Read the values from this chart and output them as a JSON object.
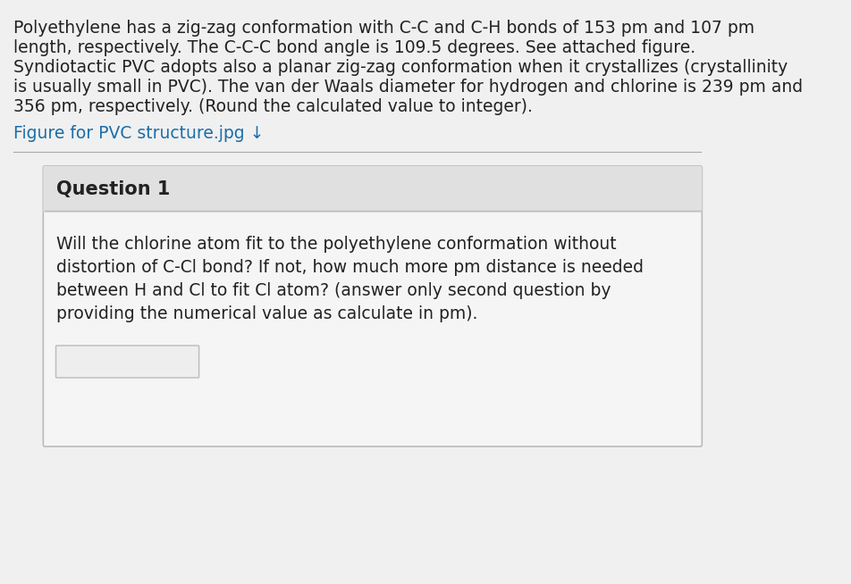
{
  "background_color": "#e8e8e8",
  "page_bg": "#f0f0f0",
  "intro_text_lines": [
    "Polyethylene has a zig-zag conformation with C-C and C-H bonds of 153 pm and 107 pm",
    "length, respectively. The C-C-C bond angle is 109.5 degrees. See attached figure.",
    "Syndiotactic PVC adopts also a planar zig-zag conformation when it crystallizes (crystallinity",
    "is usually small in PVC). The van der Waals diameter for hydrogen and chlorine is 239 pm and",
    "356 pm, respectively. (Round the calculated value to integer)."
  ],
  "link_text": "Figure for PVC structure.jpg ↓",
  "link_color": "#1a6fa8",
  "question_header": "Question 1",
  "question_body_lines": [
    "Will the chlorine atom fit to the polyethylene conformation without",
    "distortion of C-Cl bond? If not, how much more pm distance is needed",
    "between H and Cl to fit Cl atom? (answer only second question by",
    "providing the numerical value as calculate in pm)."
  ],
  "separator_color": "#aaaaaa",
  "box_border_color": "#bbbbbb",
  "box_fill_color": "#f5f5f5",
  "header_bg_color": "#e0e0e0",
  "input_box_color": "#eeeeee",
  "text_color": "#222222",
  "intro_fontsize": 13.5,
  "question_header_fontsize": 15,
  "question_body_fontsize": 13.5,
  "link_fontsize": 13.5
}
